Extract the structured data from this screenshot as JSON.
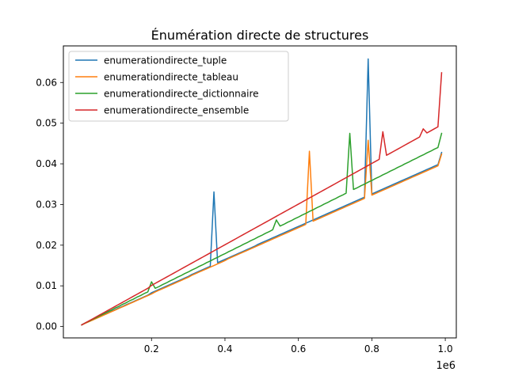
{
  "chart_data": {
    "type": "line",
    "title": "Énumération directe de structures",
    "xlabel": "",
    "ylabel": "",
    "x_offset_label": "1e6",
    "xlim": [
      -0.04,
      1.03
    ],
    "ylim": [
      -0.0028,
      0.069
    ],
    "xticks": [
      0.2,
      0.4,
      0.6,
      0.8,
      1.0
    ],
    "xtick_labels": [
      "0.2",
      "0.4",
      "0.6",
      "0.8",
      "1.0"
    ],
    "yticks": [
      0.0,
      0.01,
      0.02,
      0.03,
      0.04,
      0.05,
      0.06
    ],
    "ytick_labels": [
      "0.00",
      "0.01",
      "0.02",
      "0.03",
      "0.04",
      "0.05",
      "0.06"
    ],
    "grid": false,
    "legend_position": "upper-left",
    "x": [
      0.01,
      0.02,
      0.03,
      0.04,
      0.05,
      0.06,
      0.07,
      0.08,
      0.09,
      0.1,
      0.11,
      0.12,
      0.13,
      0.14,
      0.15,
      0.16,
      0.17,
      0.18,
      0.19,
      0.2,
      0.21,
      0.22,
      0.23,
      0.24,
      0.25,
      0.26,
      0.27,
      0.28,
      0.29,
      0.3,
      0.31,
      0.32,
      0.33,
      0.34,
      0.35,
      0.36,
      0.37,
      0.38,
      0.39,
      0.4,
      0.41,
      0.42,
      0.43,
      0.44,
      0.45,
      0.46,
      0.47,
      0.48,
      0.49,
      0.5,
      0.51,
      0.52,
      0.53,
      0.54,
      0.55,
      0.56,
      0.57,
      0.58,
      0.59,
      0.6,
      0.61,
      0.62,
      0.63,
      0.64,
      0.65,
      0.66,
      0.67,
      0.68,
      0.69,
      0.7,
      0.71,
      0.72,
      0.73,
      0.74,
      0.75,
      0.76,
      0.77,
      0.78,
      0.79,
      0.8,
      0.81,
      0.82,
      0.83,
      0.84,
      0.85,
      0.86,
      0.87,
      0.88,
      0.89,
      0.9,
      0.91,
      0.92,
      0.93,
      0.94,
      0.95,
      0.96,
      0.97,
      0.98,
      0.99
    ],
    "series": [
      {
        "name": "enumerationdirecte_tuple",
        "color": "#1f77b4",
        "values": [
          0.0004,
          0.0009,
          0.0013,
          0.0017,
          0.0021,
          0.0025,
          0.0029,
          0.0033,
          0.0037,
          0.0041,
          0.0045,
          0.0049,
          0.0053,
          0.0057,
          0.0061,
          0.0065,
          0.0069,
          0.0073,
          0.0077,
          0.0083,
          0.0087,
          0.0091,
          0.0095,
          0.0099,
          0.0103,
          0.0107,
          0.0111,
          0.0115,
          0.0119,
          0.0123,
          0.0128,
          0.0132,
          0.0136,
          0.014,
          0.0144,
          0.0148,
          0.0331,
          0.0157,
          0.0161,
          0.0165,
          0.0169,
          0.0173,
          0.0177,
          0.0181,
          0.0185,
          0.0189,
          0.0193,
          0.0197,
          0.0202,
          0.0206,
          0.021,
          0.0214,
          0.0218,
          0.0222,
          0.0226,
          0.023,
          0.0234,
          0.0238,
          0.0242,
          0.0246,
          0.025,
          0.0254,
          0.0258,
          0.0262,
          0.0266,
          0.027,
          0.0274,
          0.0278,
          0.0282,
          0.0286,
          0.029,
          0.0294,
          0.0298,
          0.0302,
          0.0306,
          0.031,
          0.0314,
          0.0318,
          0.0658,
          0.0326,
          0.033,
          0.0334,
          0.0338,
          0.0342,
          0.0346,
          0.035,
          0.0354,
          0.0358,
          0.0362,
          0.0366,
          0.037,
          0.0374,
          0.0378,
          0.0382,
          0.0386,
          0.039,
          0.0394,
          0.0398,
          0.0428
        ]
      },
      {
        "name": "enumerationdirecte_tableau",
        "color": "#ff7f0e",
        "values": [
          0.0004,
          0.0008,
          0.0012,
          0.0016,
          0.002,
          0.0024,
          0.0028,
          0.0032,
          0.0036,
          0.004,
          0.0044,
          0.0048,
          0.0052,
          0.0056,
          0.006,
          0.0064,
          0.0068,
          0.0072,
          0.0076,
          0.008,
          0.0085,
          0.0089,
          0.0093,
          0.0097,
          0.0101,
          0.0105,
          0.0109,
          0.0113,
          0.0117,
          0.0121,
          0.0126,
          0.013,
          0.0134,
          0.0138,
          0.0142,
          0.0146,
          0.015,
          0.0154,
          0.0158,
          0.0162,
          0.0167,
          0.0171,
          0.0175,
          0.0179,
          0.0183,
          0.0187,
          0.0191,
          0.0195,
          0.0199,
          0.0203,
          0.0207,
          0.0211,
          0.0215,
          0.0219,
          0.0223,
          0.0227,
          0.0231,
          0.0235,
          0.0239,
          0.0243,
          0.0247,
          0.0251,
          0.0431,
          0.0259,
          0.0263,
          0.0267,
          0.0271,
          0.0275,
          0.0279,
          0.0283,
          0.0287,
          0.0291,
          0.0295,
          0.0299,
          0.0303,
          0.0307,
          0.0311,
          0.0315,
          0.0458,
          0.0323,
          0.0327,
          0.0331,
          0.0335,
          0.0339,
          0.0343,
          0.0347,
          0.0351,
          0.0355,
          0.0359,
          0.0363,
          0.0367,
          0.0371,
          0.0375,
          0.0379,
          0.0383,
          0.0387,
          0.0391,
          0.0395,
          0.0424
        ]
      },
      {
        "name": "enumerationdirecte_dictionnaire",
        "color": "#2ca02c",
        "values": [
          0.0004,
          0.0009,
          0.0013,
          0.0018,
          0.0022,
          0.0027,
          0.0031,
          0.0036,
          0.004,
          0.0045,
          0.0049,
          0.0054,
          0.0058,
          0.0063,
          0.0067,
          0.0072,
          0.0076,
          0.0081,
          0.0085,
          0.011,
          0.0094,
          0.0098,
          0.0103,
          0.0107,
          0.0112,
          0.0116,
          0.0121,
          0.0125,
          0.013,
          0.0134,
          0.0139,
          0.0143,
          0.0148,
          0.0152,
          0.0157,
          0.0161,
          0.0166,
          0.017,
          0.0175,
          0.0179,
          0.0184,
          0.0188,
          0.0193,
          0.0197,
          0.0202,
          0.0206,
          0.0211,
          0.0215,
          0.022,
          0.0224,
          0.0229,
          0.0233,
          0.0238,
          0.0262,
          0.0247,
          0.0251,
          0.0256,
          0.026,
          0.0265,
          0.0269,
          0.0274,
          0.0278,
          0.0283,
          0.0287,
          0.0292,
          0.0296,
          0.0301,
          0.0305,
          0.031,
          0.0314,
          0.0319,
          0.0323,
          0.0328,
          0.0475,
          0.0337,
          0.0341,
          0.0346,
          0.035,
          0.0355,
          0.0359,
          0.0364,
          0.0368,
          0.0373,
          0.0377,
          0.0382,
          0.0386,
          0.0391,
          0.0395,
          0.04,
          0.0404,
          0.0409,
          0.0413,
          0.0418,
          0.0422,
          0.0427,
          0.0431,
          0.0436,
          0.044,
          0.0475
        ]
      },
      {
        "name": "enumerationdirecte_ensemble",
        "color": "#d62728",
        "values": [
          0.0004,
          0.0009,
          0.0014,
          0.0019,
          0.0024,
          0.0029,
          0.0034,
          0.0039,
          0.0044,
          0.0049,
          0.0054,
          0.0059,
          0.0064,
          0.0069,
          0.0074,
          0.0079,
          0.0084,
          0.0089,
          0.0094,
          0.0101,
          0.0106,
          0.0111,
          0.0116,
          0.0121,
          0.0126,
          0.0131,
          0.0136,
          0.0141,
          0.0146,
          0.0151,
          0.0156,
          0.0161,
          0.0166,
          0.0171,
          0.0176,
          0.0181,
          0.0186,
          0.0191,
          0.0196,
          0.0201,
          0.0206,
          0.0211,
          0.0216,
          0.0221,
          0.0226,
          0.0231,
          0.0236,
          0.0241,
          0.0246,
          0.0251,
          0.0256,
          0.0261,
          0.0266,
          0.0271,
          0.0276,
          0.0281,
          0.0286,
          0.0291,
          0.0296,
          0.0301,
          0.0306,
          0.0311,
          0.0316,
          0.0321,
          0.0326,
          0.0331,
          0.0336,
          0.0341,
          0.0346,
          0.0351,
          0.0356,
          0.0361,
          0.0366,
          0.0371,
          0.0376,
          0.0381,
          0.0386,
          0.0391,
          0.0396,
          0.0401,
          0.0406,
          0.0411,
          0.0479,
          0.0421,
          0.0426,
          0.0431,
          0.0436,
          0.0441,
          0.0446,
          0.0451,
          0.0456,
          0.0461,
          0.0466,
          0.0486,
          0.0476,
          0.0481,
          0.0486,
          0.0491,
          0.0624
        ]
      }
    ]
  }
}
